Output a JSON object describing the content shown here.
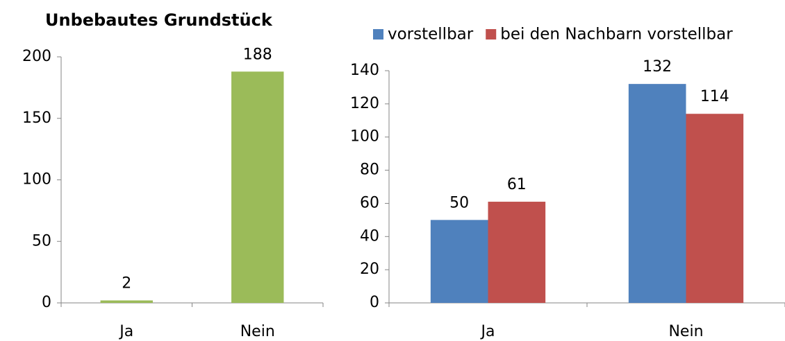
{
  "chart_data": [
    {
      "type": "bar",
      "title": "Unbebautes Grundstück",
      "categories": [
        "Ja",
        "Nein"
      ],
      "values": [
        2,
        188
      ],
      "color": "#9bbb59",
      "ylim": [
        0,
        200
      ],
      "yticks": [
        0,
        50,
        100,
        150,
        200
      ]
    },
    {
      "type": "grouped_bar",
      "categories": [
        "Ja",
        "Nein"
      ],
      "series": [
        {
          "name": "vorstellbar",
          "color": "#4f81bd",
          "values": [
            50,
            132
          ]
        },
        {
          "name": "bei den Nachbarn vorstellbar",
          "color": "#c0504d",
          "values": [
            61,
            114
          ]
        }
      ],
      "ylim": [
        0,
        140
      ],
      "yticks": [
        0,
        20,
        40,
        60,
        80,
        100,
        120,
        140
      ],
      "legend": "top"
    }
  ]
}
